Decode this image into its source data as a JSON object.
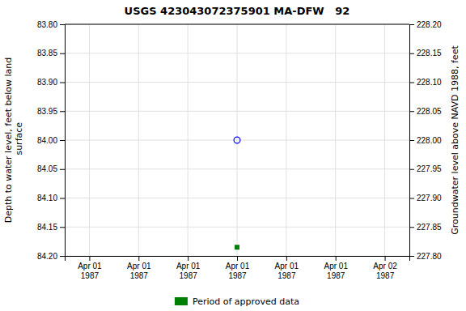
{
  "chart_data": {
    "type": "scatter",
    "title": "USGS 423043072375901 MA-DFW   92",
    "ylabel": "Depth to water level, feet below land\n surface",
    "y2label": "Groundwater level above NAVD 1988, feet",
    "categories": [
      "Apr 01\n1987",
      "Apr 01\n1987",
      "Apr 01\n1987",
      "Apr 01\n1987",
      "Apr 01\n1987",
      "Apr 01\n1987",
      "Apr 02\n1987"
    ],
    "ylim": [
      84.2,
      83.8
    ],
    "yticks": [
      {
        "value": 83.8,
        "label": "83.80"
      },
      {
        "value": 83.85,
        "label": "83.85"
      },
      {
        "value": 83.9,
        "label": "83.90"
      },
      {
        "value": 83.95,
        "label": "83.95"
      },
      {
        "value": 84.0,
        "label": "84.00"
      },
      {
        "value": 84.05,
        "label": "84.05"
      },
      {
        "value": 84.1,
        "label": "84.10"
      },
      {
        "value": 84.15,
        "label": "84.15"
      },
      {
        "value": 84.2,
        "label": "84.20"
      }
    ],
    "y2lim": [
      227.8,
      228.2
    ],
    "y2ticks": [
      {
        "value": 228.2,
        "label": "228.20"
      },
      {
        "value": 228.15,
        "label": "228.15"
      },
      {
        "value": 228.1,
        "label": "228.10"
      },
      {
        "value": 228.05,
        "label": "228.05"
      },
      {
        "value": 228.0,
        "label": "228.00"
      },
      {
        "value": 227.95,
        "label": "227.95"
      },
      {
        "value": 227.9,
        "label": "227.90"
      },
      {
        "value": 227.85,
        "label": "227.85"
      },
      {
        "value": 227.8,
        "label": "227.80"
      }
    ],
    "series": [
      {
        "color": "#0000ff",
        "marker": "circle",
        "values": [
          null,
          null,
          null,
          84.0,
          null,
          null,
          null
        ]
      },
      {
        "name": "Period of approved data",
        "color": "#008000",
        "marker": "square",
        "values": [
          null,
          null,
          null,
          84.185,
          null,
          null,
          null
        ]
      }
    ],
    "grid": true,
    "legend": "bottom"
  }
}
